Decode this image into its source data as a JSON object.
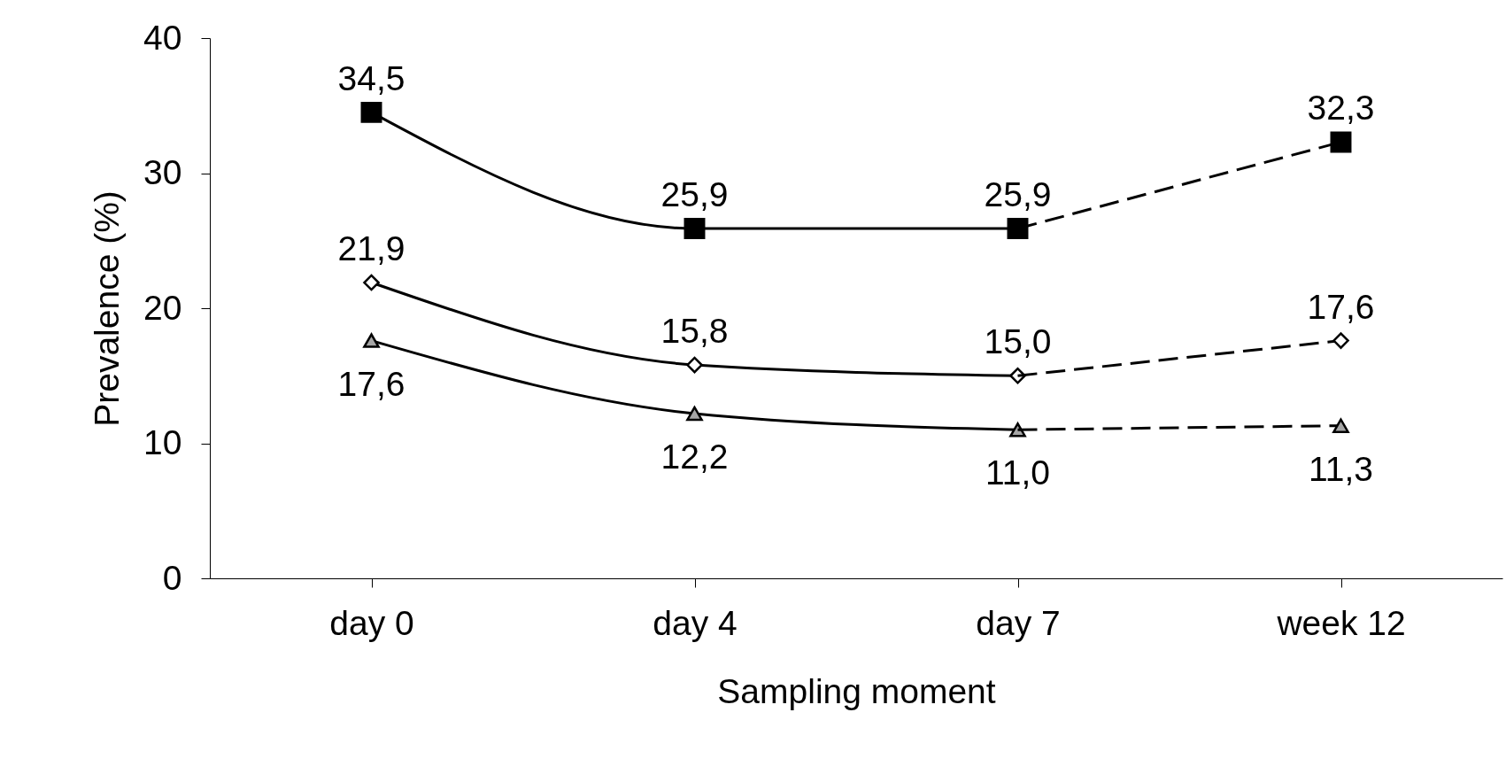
{
  "chart_data": {
    "type": "line",
    "xlabel": "Sampling moment",
    "ylabel": "Prevalence (%)",
    "categories": [
      "day 0",
      "day 4",
      "day 7",
      "week 12"
    ],
    "ylim": [
      0,
      40
    ],
    "yticks": [
      0,
      10,
      20,
      30,
      40
    ],
    "series": [
      {
        "color": "#000000",
        "marker": "square",
        "line_style": "solid",
        "colors": [
          "#000000",
          "#000000",
          "#000000",
          null
        ],
        "values": [
          34.5,
          25.9,
          25.9,
          null
        ],
        "value_labels": [
          "34,5",
          "25,9",
          "25,9",
          null
        ]
      },
      {
        "color": "#000000",
        "marker": "square",
        "line_style": "dashed",
        "colors": [
          null,
          null,
          "#000000",
          "#000000"
        ],
        "values": [
          null,
          null,
          25.9,
          32.3
        ],
        "value_labels": [
          null,
          null,
          null,
          "32,3"
        ]
      },
      {
        "color": "#000000",
        "marker": "diamond",
        "line_style": "solid",
        "colors": [
          "#ffffff",
          "#ffffff",
          "#ffffff",
          null
        ],
        "values": [
          21.9,
          15.8,
          15.0,
          null
        ],
        "value_labels": [
          "21,9",
          "15,8",
          "15,0",
          null
        ]
      },
      {
        "color": "#000000",
        "marker": "diamond",
        "line_style": "dashed",
        "colors": [
          null,
          null,
          "#ffffff",
          "#ffffff"
        ],
        "values": [
          null,
          null,
          15.0,
          17.6
        ],
        "value_labels": [
          null,
          null,
          null,
          "17,6"
        ]
      },
      {
        "color": "#000000",
        "marker": "triangle",
        "line_style": "solid",
        "colors": [
          "#a6a6a6",
          "#a6a6a6",
          "#a6a6a6",
          null
        ],
        "values": [
          17.6,
          12.2,
          11.0,
          null
        ],
        "value_labels": [
          "17,6",
          "12,2",
          "11,0",
          null
        ]
      },
      {
        "color": "#000000",
        "marker": "triangle",
        "line_style": "dashed",
        "colors": [
          null,
          null,
          "#a6a6a6",
          "#a6a6a6"
        ],
        "values": [
          null,
          null,
          11.0,
          11.3
        ],
        "value_labels": [
          null,
          null,
          null,
          "11,3"
        ]
      }
    ]
  }
}
